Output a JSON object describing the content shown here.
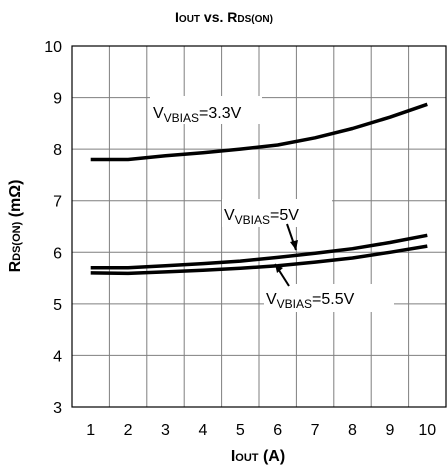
{
  "chart_data": {
    "type": "line",
    "title": {
      "main": "I",
      "sub": "OUT",
      "mid": " vs. R",
      "sub2": "DS(ON)"
    },
    "xlabel": {
      "main": "I",
      "sub": "OUT",
      "tail": " (A)"
    },
    "ylabel": {
      "main": "R",
      "sub": "DS(ON)",
      "tail": " (mΩ)"
    },
    "xlim": [
      0.5,
      10.5
    ],
    "ylim": [
      3,
      10
    ],
    "x_ticks": [
      "1",
      "2",
      "3",
      "4",
      "5",
      "6",
      "7",
      "8",
      "9",
      "10"
    ],
    "y_ticks": [
      "3",
      "4",
      "5",
      "6",
      "7",
      "8",
      "9",
      "10"
    ],
    "grid": true,
    "series": [
      {
        "name": {
          "main": "V",
          "sub": "VBIAS",
          "tail": "=3.3V"
        },
        "x": [
          1,
          2,
          3,
          4,
          5,
          6,
          7,
          8,
          9,
          10
        ],
        "values": [
          7.8,
          7.8,
          7.87,
          7.93,
          8.0,
          8.08,
          8.22,
          8.4,
          8.62,
          8.87
        ]
      },
      {
        "name": {
          "main": "V",
          "sub": "VBIAS",
          "tail": "=5V"
        },
        "x": [
          1,
          2,
          3,
          4,
          5,
          6,
          7,
          8,
          9,
          10
        ],
        "values": [
          5.7,
          5.7,
          5.74,
          5.78,
          5.83,
          5.9,
          5.98,
          6.07,
          6.19,
          6.33
        ]
      },
      {
        "name": {
          "main": "V",
          "sub": "VBIAS",
          "tail": "=5.5V"
        },
        "x": [
          1,
          2,
          3,
          4,
          5,
          6,
          7,
          8,
          9,
          10
        ],
        "values": [
          5.6,
          5.59,
          5.62,
          5.65,
          5.69,
          5.74,
          5.81,
          5.89,
          6.0,
          6.12
        ]
      }
    ]
  }
}
